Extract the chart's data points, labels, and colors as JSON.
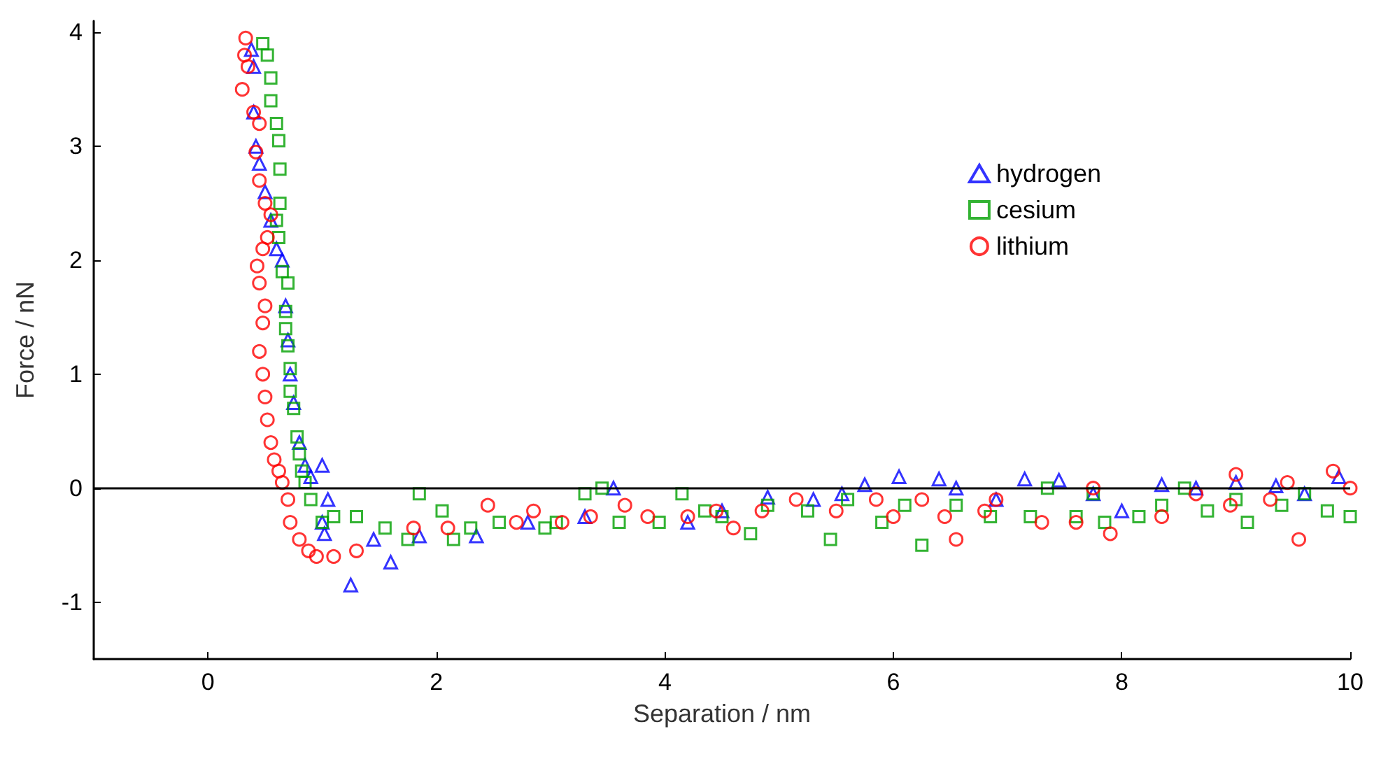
{
  "chart_data": {
    "type": "scatter",
    "xlabel": "Separation / nm",
    "ylabel": "Force / nN",
    "xlim": [
      -1,
      10
    ],
    "ylim": [
      -1.5,
      4.1
    ],
    "xticks": [
      0,
      2,
      4,
      6,
      8,
      10
    ],
    "yticks": [
      -1,
      0,
      1,
      2,
      3,
      4
    ],
    "grid": false,
    "legend": "top right",
    "ref_lines": [
      {
        "axis": "y",
        "value": 0,
        "color": "#000000"
      }
    ],
    "series": [
      {
        "name": "hydrogen",
        "color": "#0000ff",
        "marker": "triangle",
        "x": [
          0.38,
          0.4,
          0.4,
          0.42,
          0.45,
          0.5,
          0.55,
          0.6,
          0.65,
          0.68,
          0.7,
          0.72,
          0.75,
          0.8,
          0.85,
          0.9,
          1.0,
          1.05,
          1.0,
          1.02,
          1.25,
          1.45,
          1.6,
          1.85,
          2.35,
          2.8,
          3.3,
          3.55,
          4.2,
          4.5,
          4.9,
          5.3,
          5.55,
          5.75,
          6.05,
          6.4,
          6.55,
          6.9,
          7.15,
          7.45,
          7.75,
          8.0,
          8.35,
          8.65,
          9.0,
          9.35,
          9.6,
          9.9
        ],
        "values": [
          3.85,
          3.7,
          3.3,
          3.0,
          2.85,
          2.6,
          2.35,
          2.1,
          2.0,
          1.6,
          1.3,
          1.0,
          0.75,
          0.4,
          0.2,
          0.1,
          0.2,
          -0.1,
          -0.3,
          -0.4,
          -0.85,
          -0.45,
          -0.65,
          -0.42,
          -0.42,
          -0.3,
          -0.25,
          0.0,
          -0.3,
          -0.2,
          -0.08,
          -0.1,
          -0.05,
          0.03,
          0.1,
          0.08,
          0.0,
          -0.1,
          0.08,
          0.07,
          -0.05,
          -0.2,
          0.03,
          0.0,
          0.05,
          0.02,
          -0.05,
          0.1
        ]
      },
      {
        "name": "cesium",
        "color": "#00a000",
        "marker": "square",
        "x": [
          0.48,
          0.52,
          0.55,
          0.55,
          0.6,
          0.62,
          0.63,
          0.63,
          0.6,
          0.62,
          0.65,
          0.7,
          0.68,
          0.68,
          0.7,
          0.72,
          0.72,
          0.75,
          0.78,
          0.8,
          0.82,
          0.85,
          0.9,
          1.0,
          1.1,
          1.3,
          1.55,
          1.75,
          1.85,
          2.05,
          2.15,
          2.3,
          2.55,
          2.95,
          3.05,
          3.3,
          3.45,
          3.6,
          3.95,
          4.15,
          4.35,
          4.5,
          4.75,
          4.9,
          5.25,
          5.45,
          5.6,
          5.9,
          6.1,
          6.25,
          6.55,
          6.85,
          7.2,
          7.35,
          7.6,
          7.75,
          7.85,
          8.15,
          8.35,
          8.55,
          8.75,
          9.0,
          9.1,
          9.4,
          9.6,
          9.8,
          10.0
        ],
        "values": [
          3.9,
          3.8,
          3.6,
          3.4,
          3.2,
          3.05,
          2.8,
          2.5,
          2.35,
          2.2,
          1.9,
          1.8,
          1.55,
          1.4,
          1.25,
          1.05,
          0.85,
          0.7,
          0.45,
          0.3,
          0.15,
          0.05,
          -0.1,
          -0.3,
          -0.25,
          -0.25,
          -0.35,
          -0.45,
          -0.05,
          -0.2,
          -0.45,
          -0.35,
          -0.3,
          -0.35,
          -0.3,
          -0.05,
          0.0,
          -0.3,
          -0.3,
          -0.05,
          -0.2,
          -0.25,
          -0.4,
          -0.15,
          -0.2,
          -0.45,
          -0.1,
          -0.3,
          -0.15,
          -0.5,
          -0.15,
          -0.25,
          -0.25,
          0.0,
          -0.25,
          -0.05,
          -0.3,
          -0.25,
          -0.15,
          0.0,
          -0.2,
          -0.1,
          -0.3,
          -0.15,
          -0.05,
          -0.2,
          -0.25
        ]
      },
      {
        "name": "lithium",
        "color": "#ff0000",
        "marker": "circle",
        "x": [
          0.33,
          0.32,
          0.35,
          0.3,
          0.4,
          0.45,
          0.42,
          0.45,
          0.5,
          0.55,
          0.52,
          0.48,
          0.43,
          0.45,
          0.5,
          0.48,
          0.45,
          0.48,
          0.5,
          0.52,
          0.55,
          0.58,
          0.62,
          0.65,
          0.7,
          0.72,
          0.8,
          0.88,
          0.95,
          1.1,
          1.3,
          1.8,
          2.1,
          2.45,
          2.7,
          2.85,
          3.1,
          3.35,
          3.65,
          3.85,
          4.2,
          4.45,
          4.6,
          4.85,
          5.15,
          5.5,
          5.85,
          6.0,
          6.25,
          6.45,
          6.55,
          6.8,
          6.9,
          7.3,
          7.6,
          7.75,
          7.9,
          8.35,
          8.65,
          8.95,
          9.0,
          9.3,
          9.45,
          9.55,
          9.85,
          10.0
        ],
        "values": [
          3.95,
          3.8,
          3.7,
          3.5,
          3.3,
          3.2,
          2.95,
          2.7,
          2.5,
          2.4,
          2.2,
          2.1,
          1.95,
          1.8,
          1.6,
          1.45,
          1.2,
          1.0,
          0.8,
          0.6,
          0.4,
          0.25,
          0.15,
          0.05,
          -0.1,
          -0.3,
          -0.45,
          -0.55,
          -0.6,
          -0.6,
          -0.55,
          -0.35,
          -0.35,
          -0.15,
          -0.3,
          -0.2,
          -0.3,
          -0.25,
          -0.15,
          -0.25,
          -0.25,
          -0.2,
          -0.35,
          -0.2,
          -0.1,
          -0.2,
          -0.1,
          -0.25,
          -0.1,
          -0.25,
          -0.45,
          -0.2,
          -0.1,
          -0.3,
          -0.3,
          0.0,
          -0.4,
          -0.25,
          -0.05,
          -0.15,
          0.12,
          -0.1,
          0.05,
          -0.45,
          0.15,
          0.0
        ]
      }
    ]
  }
}
